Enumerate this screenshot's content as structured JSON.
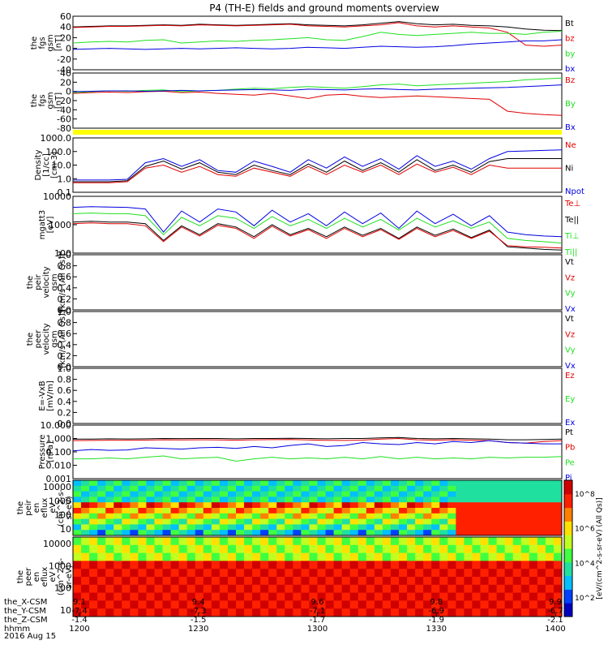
{
  "title": "P4 (TH-E) fields and ground moments overview",
  "date": "2016 Aug 15",
  "colors": {
    "black": "#000000",
    "red": "#e00000",
    "green": "#20e020",
    "blue": "#0000e0",
    "yellow": "#ffff00"
  },
  "chart_data": {
    "type": "line",
    "x_axis": {
      "ticks": [
        {
          "r": "9.1",
          "x": "-7.4",
          "y": "-1.4",
          "t": "1200"
        },
        {
          "r": "9.4",
          "x": "-7.3",
          "y": "-1.5",
          "t": "1230"
        },
        {
          "r": "9.6",
          "x": "-7.1",
          "y": "-1.7",
          "t": "1300"
        },
        {
          "r": "9.8",
          "x": "-6.9",
          "y": "-1.9",
          "t": "1330"
        },
        {
          "r": "9.9",
          "x": "-6.7",
          "y": "-2.1",
          "t": "1400"
        }
      ],
      "row_labels": [
        "the_X-CSM",
        "the_Y-CSM",
        "the_Z-CSM",
        "hhmm"
      ]
    },
    "panels": [
      {
        "ylabel": "the\nfgs\ngsm\n[nT]",
        "yticks": [
          "60",
          "40",
          "20",
          "0",
          "-20",
          "-40"
        ],
        "ylim": [
          -40,
          60
        ],
        "legend": [
          [
            "Bt",
            "black"
          ],
          [
            "bz",
            "red"
          ],
          [
            "by",
            "green"
          ],
          [
            "bx",
            "blue"
          ]
        ],
        "series": [
          {
            "name": "Bt",
            "color": "black",
            "values": [
              40,
              41,
              42,
              42,
              43,
              44,
              43,
              45,
              44,
              43,
              44,
              45,
              46,
              44,
              43,
              42,
              44,
              47,
              50,
              46,
              44,
              45,
              43,
              42,
              40,
              36,
              34,
              33
            ]
          },
          {
            "name": "bz",
            "color": "red",
            "values": [
              39,
              40,
              41,
              41,
              42,
              43,
              42,
              44,
              43,
              42,
              43,
              44,
              45,
              42,
              41,
              40,
              42,
              44,
              48,
              42,
              40,
              42,
              40,
              38,
              30,
              6,
              4,
              6
            ]
          },
          {
            "name": "by",
            "color": "green",
            "values": [
              10,
              12,
              13,
              12,
              15,
              16,
              10,
              12,
              14,
              13,
              15,
              16,
              18,
              20,
              16,
              15,
              22,
              30,
              26,
              24,
              26,
              28,
              30,
              28,
              28,
              26,
              30,
              32
            ]
          },
          {
            "name": "bx",
            "color": "blue",
            "values": [
              -2,
              -1,
              0,
              -1,
              -2,
              -1,
              0,
              -1,
              0,
              1,
              0,
              -1,
              0,
              2,
              1,
              0,
              2,
              4,
              3,
              2,
              3,
              5,
              8,
              10,
              12,
              14,
              14,
              16
            ]
          }
        ]
      },
      {
        "ylabel": "the\nfgs\ngsm\n[nT]",
        "yticks": [
          "40",
          "20",
          "0",
          "-20",
          "-40",
          "-60",
          "-80"
        ],
        "ylim": [
          -90,
          40
        ],
        "legend": [
          [
            "Bz",
            "red"
          ],
          [
            "By",
            "green"
          ],
          [
            "Bx",
            "blue"
          ]
        ],
        "series": [
          {
            "name": "Bz",
            "color": "red",
            "values": [
              -8,
              -6,
              -5,
              -6,
              -4,
              -3,
              -6,
              -5,
              -8,
              -10,
              -12,
              -8,
              -14,
              -20,
              -12,
              -10,
              -15,
              -18,
              -16,
              -14,
              -16,
              -18,
              -20,
              -22,
              -50,
              -55,
              -58,
              -60
            ]
          },
          {
            "name": "By",
            "color": "green",
            "values": [
              -6,
              -4,
              -2,
              -3,
              -1,
              0,
              -4,
              -2,
              -1,
              2,
              4,
              3,
              6,
              8,
              6,
              4,
              8,
              12,
              14,
              10,
              12,
              14,
              16,
              18,
              20,
              24,
              26,
              28
            ]
          },
          {
            "name": "Bx",
            "color": "blue",
            "values": [
              -4,
              -3,
              -2,
              -2,
              -3,
              -2,
              -1,
              -2,
              -1,
              0,
              1,
              0,
              -1,
              2,
              1,
              0,
              2,
              3,
              1,
              0,
              2,
              3,
              4,
              5,
              6,
              8,
              10,
              12
            ]
          }
        ]
      },
      {
        "ylabel": "Density\n[1/cc]\n[cm-3]",
        "yticks": [
          "1000.0",
          "100.0",
          "10.0",
          "1.0",
          "0.1"
        ],
        "ylim": [
          0.1,
          1000
        ],
        "log": true,
        "legend": [
          [
            "Ne",
            "red"
          ],
          [
            "Ni",
            "black"
          ],
          [
            "Npot",
            "blue"
          ]
        ],
        "series": [
          {
            "name": "Ni",
            "color": "black",
            "values": [
              0.6,
              0.6,
              0.6,
              0.7,
              8,
              20,
              5,
              15,
              3,
              2,
              10,
              4,
              2,
              12,
              3,
              20,
              4,
              15,
              3,
              25,
              4,
              10,
              3,
              18,
              30,
              30,
              30,
              30
            ]
          },
          {
            "name": "Ne",
            "color": "red",
            "values": [
              0.5,
              0.5,
              0.5,
              0.6,
              6,
              10,
              3,
              8,
              2,
              1.5,
              6,
              3,
              1.5,
              8,
              2,
              10,
              3,
              10,
              2,
              12,
              3,
              7,
              2,
              10,
              6,
              6,
              6,
              6
            ]
          },
          {
            "name": "Npot",
            "color": "blue",
            "values": [
              0.8,
              0.8,
              0.8,
              0.9,
              15,
              30,
              8,
              25,
              4,
              3,
              20,
              8,
              3,
              25,
              6,
              40,
              8,
              30,
              5,
              50,
              8,
              20,
              5,
              30,
              100,
              110,
              120,
              130
            ]
          }
        ]
      },
      {
        "ylabel": "mgatt3\n[eV]",
        "yticks": [
          "10000",
          "1000",
          "100"
        ],
        "ylim": [
          20,
          10000
        ],
        "log": true,
        "legend": [
          [
            "Te⊥",
            "red"
          ],
          [
            "Te||",
            "black"
          ],
          [
            "Ti⊥",
            "green"
          ],
          [
            "Ti||",
            "green"
          ]
        ],
        "series": [
          {
            "name": "Ti⊥",
            "color": "blue",
            "values": [
              3000,
              3200,
              3100,
              3000,
              2500,
              200,
              2000,
              600,
              2500,
              1800,
              400,
              2200,
              600,
              1500,
              400,
              1800,
              500,
              1600,
              300,
              2000,
              500,
              1400,
              400,
              1200,
              200,
              150,
              130,
              120
            ]
          },
          {
            "name": "Ti||",
            "color": "green",
            "values": [
              1500,
              1600,
              1500,
              1500,
              1200,
              150,
              1000,
              400,
              1200,
              900,
              300,
              1100,
              400,
              800,
              300,
              900,
              350,
              800,
              250,
              900,
              350,
              700,
              300,
              600,
              100,
              80,
              70,
              60
            ]
          },
          {
            "name": "Te||",
            "color": "black",
            "values": [
              600,
              650,
              600,
              600,
              500,
              80,
              400,
              150,
              500,
              350,
              120,
              450,
              150,
              300,
              120,
              350,
              140,
              300,
              100,
              350,
              140,
              280,
              110,
              250,
              40,
              35,
              30,
              28
            ]
          },
          {
            "name": "Te⊥",
            "color": "red",
            "values": [
              500,
              550,
              500,
              500,
              400,
              70,
              350,
              130,
              420,
              300,
              100,
              380,
              130,
              260,
              100,
              300,
              120,
              260,
              90,
              300,
              120,
              240,
              100,
              220,
              45,
              40,
              38,
              35
            ]
          }
        ]
      },
      {
        "ylabel": "the\npeir\nvelocity\ngsm\n[km/s (All Qs)]",
        "yticks": [
          "1.0",
          "0.8",
          "0.6",
          "0.4",
          "0.2",
          "0.0"
        ],
        "ylim": [
          0,
          1
        ],
        "legend": [
          [
            "Vt",
            "black"
          ],
          [
            "Vz",
            "red"
          ],
          [
            "Vy",
            "green"
          ],
          [
            "Vx",
            "blue"
          ]
        ],
        "series": []
      },
      {
        "ylabel": "the\npeer\nvelocity\ngsm\n[km/s (All Qs)]",
        "yticks": [
          "1.0",
          "0.8",
          "0.6",
          "0.4",
          "0.2",
          "0.0"
        ],
        "ylim": [
          0,
          1
        ],
        "legend": [
          [
            "Vt",
            "black"
          ],
          [
            "Vz",
            "red"
          ],
          [
            "Vy",
            "green"
          ],
          [
            "Vx",
            "blue"
          ]
        ],
        "series": []
      },
      {
        "ylabel": "E=-VxB\n[mV/m]",
        "yticks": [
          "1.0",
          "0.8",
          "0.6",
          "0.4",
          "0.2",
          "0.0"
        ],
        "ylim": [
          0,
          1
        ],
        "legend": [
          [
            "Ez",
            "red"
          ],
          [
            "Ey",
            "green"
          ],
          [
            "Ex",
            "blue"
          ]
        ],
        "series": []
      },
      {
        "ylabel": "Pressure\n[nPa]",
        "yticks": [
          "10.000",
          "1.000",
          "0.100",
          "0.010",
          "0.001"
        ],
        "ylim": [
          0.001,
          10
        ],
        "log": true,
        "legend": [
          [
            "Pt",
            "black"
          ],
          [
            "Pb",
            "red"
          ],
          [
            "Pe",
            "green"
          ],
          [
            "Pi",
            "blue"
          ]
        ],
        "series": [
          {
            "name": "Pt",
            "color": "black",
            "values": [
              0.9,
              0.9,
              0.95,
              0.92,
              0.95,
              1.0,
              0.98,
              1.0,
              1.0,
              0.95,
              1.0,
              1.0,
              1.05,
              1.0,
              0.95,
              1.0,
              1.0,
              1.1,
              1.2,
              1.0,
              0.95,
              1.0,
              0.95,
              0.9,
              0.8,
              0.8,
              0.85,
              0.9
            ]
          },
          {
            "name": "Pb",
            "color": "red",
            "values": [
              0.7,
              0.72,
              0.75,
              0.74,
              0.76,
              0.8,
              0.78,
              0.8,
              0.79,
              0.75,
              0.8,
              0.82,
              0.85,
              0.78,
              0.74,
              0.72,
              0.76,
              0.9,
              1.0,
              0.8,
              0.76,
              0.8,
              0.75,
              0.7,
              0.5,
              0.45,
              0.6,
              0.7
            ]
          },
          {
            "name": "Pe",
            "color": "green",
            "values": [
              0.03,
              0.03,
              0.035,
              0.03,
              0.04,
              0.05,
              0.03,
              0.035,
              0.04,
              0.02,
              0.03,
              0.04,
              0.03,
              0.035,
              0.03,
              0.04,
              0.03,
              0.045,
              0.03,
              0.04,
              0.03,
              0.035,
              0.03,
              0.04,
              0.035,
              0.04,
              0.04,
              0.045
            ]
          },
          {
            "name": "Pi",
            "color": "blue",
            "values": [
              0.12,
              0.15,
              0.13,
              0.14,
              0.2,
              0.18,
              0.16,
              0.2,
              0.22,
              0.18,
              0.25,
              0.2,
              0.3,
              0.4,
              0.25,
              0.3,
              0.5,
              0.4,
              0.35,
              0.5,
              0.4,
              0.6,
              0.5,
              0.7,
              0.5,
              0.45,
              0.4,
              0.4
            ]
          }
        ]
      }
    ],
    "spectrograms": [
      {
        "ylabel": "the\npeir\nen\neflux\neV\n(cm^2-s-\nsr-eV)",
        "yticks": [
          "10000",
          "1000",
          "100",
          "10"
        ]
      },
      {
        "ylabel": "the\npeer\nen\neflux\neV\n(cm^2-s-\nsr-eV)",
        "yticks": [
          "10000",
          "1000",
          "100",
          "10"
        ]
      }
    ],
    "colorbar": {
      "label": "[eV/(cm^2-s-sr-eV) (All Qs)]",
      "ticks": [
        "10^8",
        "10^6",
        "10^4",
        "10^2"
      ]
    }
  }
}
